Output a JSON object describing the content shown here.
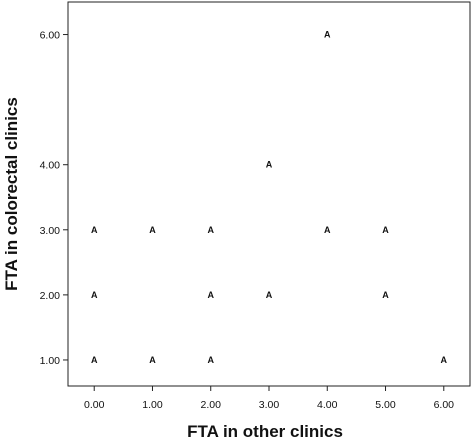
{
  "chart_data": {
    "type": "scatter",
    "xlabel": "FTA in other clinics",
    "ylabel": "FTA in colorectal clinics",
    "marker_symbol": "A",
    "xlim": [
      -0.45,
      6.45
    ],
    "ylim": [
      0.6,
      6.5
    ],
    "x_ticks": [
      "0.00",
      "1.00",
      "2.00",
      "3.00",
      "4.00",
      "5.00",
      "6.00"
    ],
    "y_ticks": [
      "1.00",
      "2.00",
      "3.00",
      "4.00",
      "6.00"
    ],
    "y_tick_values": [
      1,
      2,
      3,
      4,
      6
    ],
    "grid": false,
    "points": [
      {
        "x": 0,
        "y": 3
      },
      {
        "x": 1,
        "y": 3
      },
      {
        "x": 2,
        "y": 3
      },
      {
        "x": 4,
        "y": 3
      },
      {
        "x": 5,
        "y": 3
      },
      {
        "x": 0,
        "y": 2
      },
      {
        "x": 2,
        "y": 2
      },
      {
        "x": 3,
        "y": 2
      },
      {
        "x": 5,
        "y": 2
      },
      {
        "x": 0,
        "y": 1
      },
      {
        "x": 1,
        "y": 1
      },
      {
        "x": 2,
        "y": 1
      },
      {
        "x": 6,
        "y": 1
      },
      {
        "x": 3,
        "y": 4
      },
      {
        "x": 4,
        "y": 6
      }
    ]
  }
}
